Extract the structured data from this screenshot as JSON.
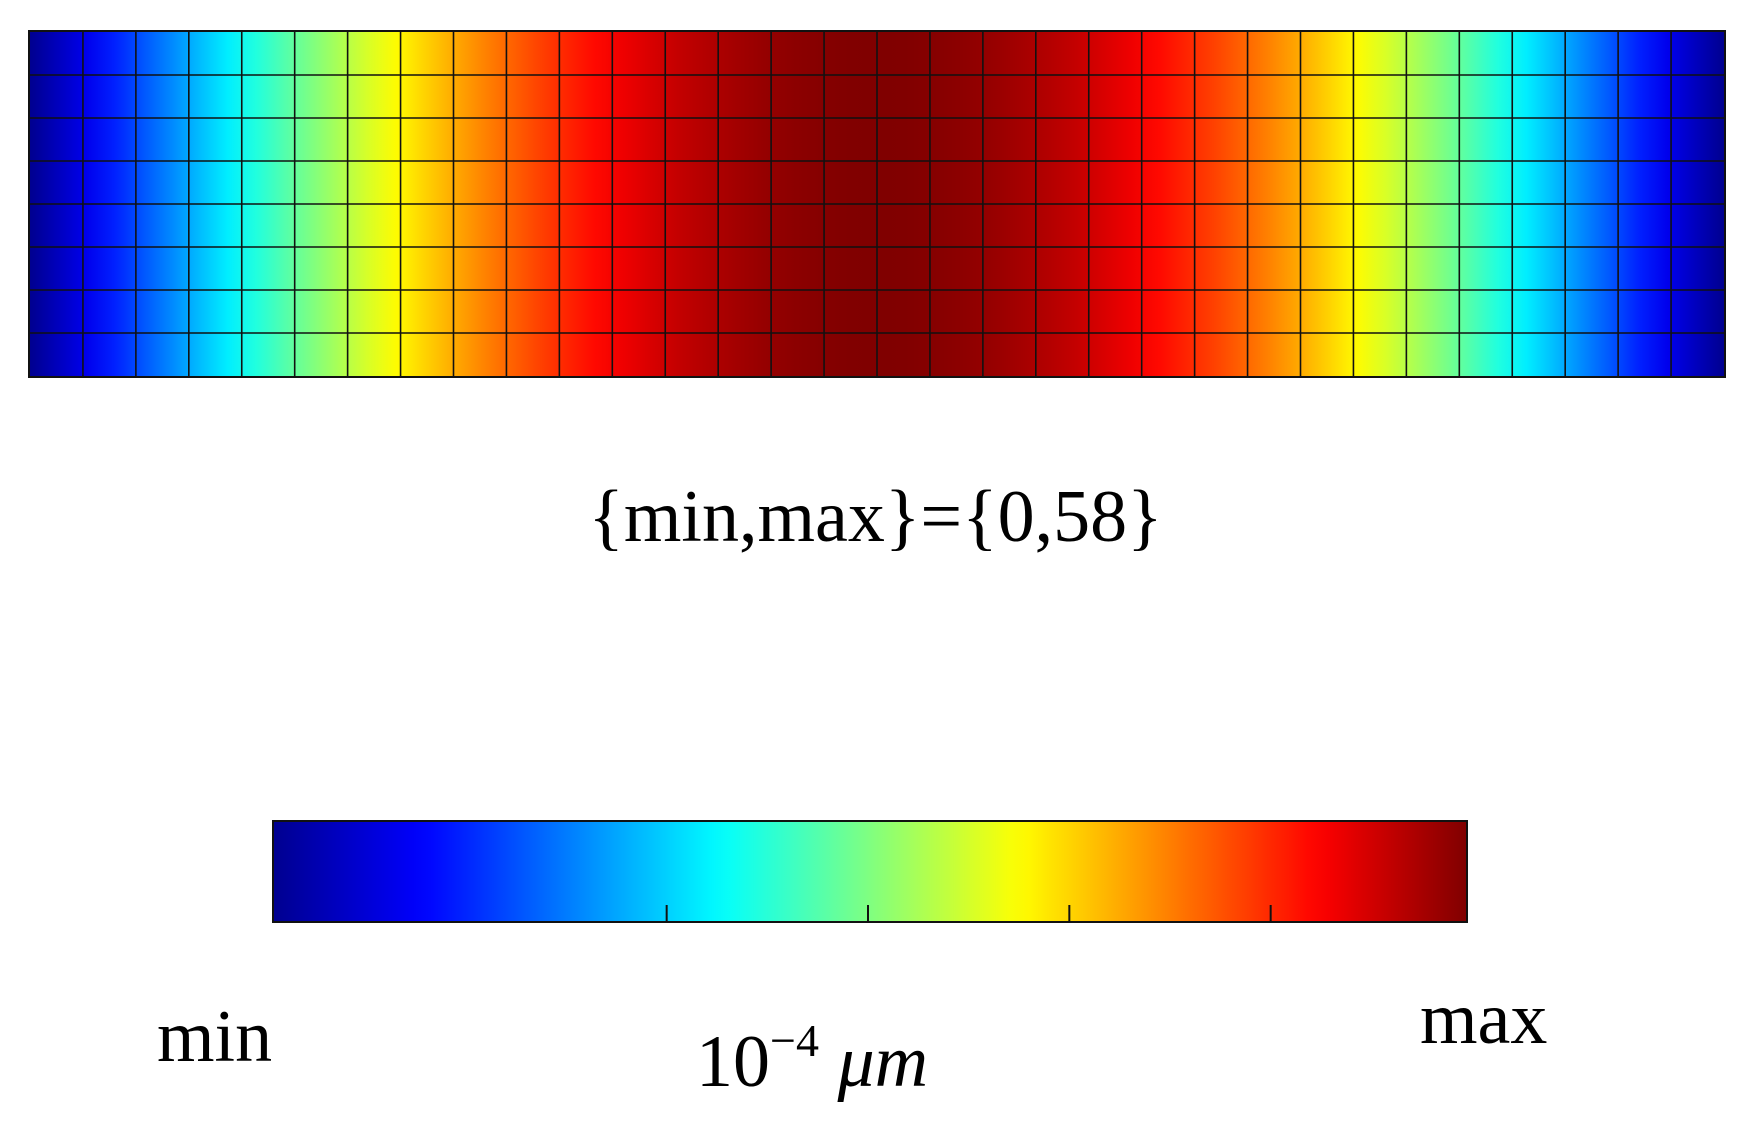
{
  "range_label": "{min,max}={0,58}",
  "colorbar": {
    "min_label": "min",
    "max_label": "max",
    "unit_base": "10",
    "unit_exponent": "−4",
    "unit_symbol": "μm"
  },
  "mesh": {
    "columns": 32,
    "rows": 8,
    "field_profile": "sinusoidal, minimum at both ends, maximum at center"
  },
  "colormap": [
    "#00008f",
    "#0000ff",
    "#00ffff",
    "#ffff00",
    "#ff0000",
    "#800000"
  ]
}
